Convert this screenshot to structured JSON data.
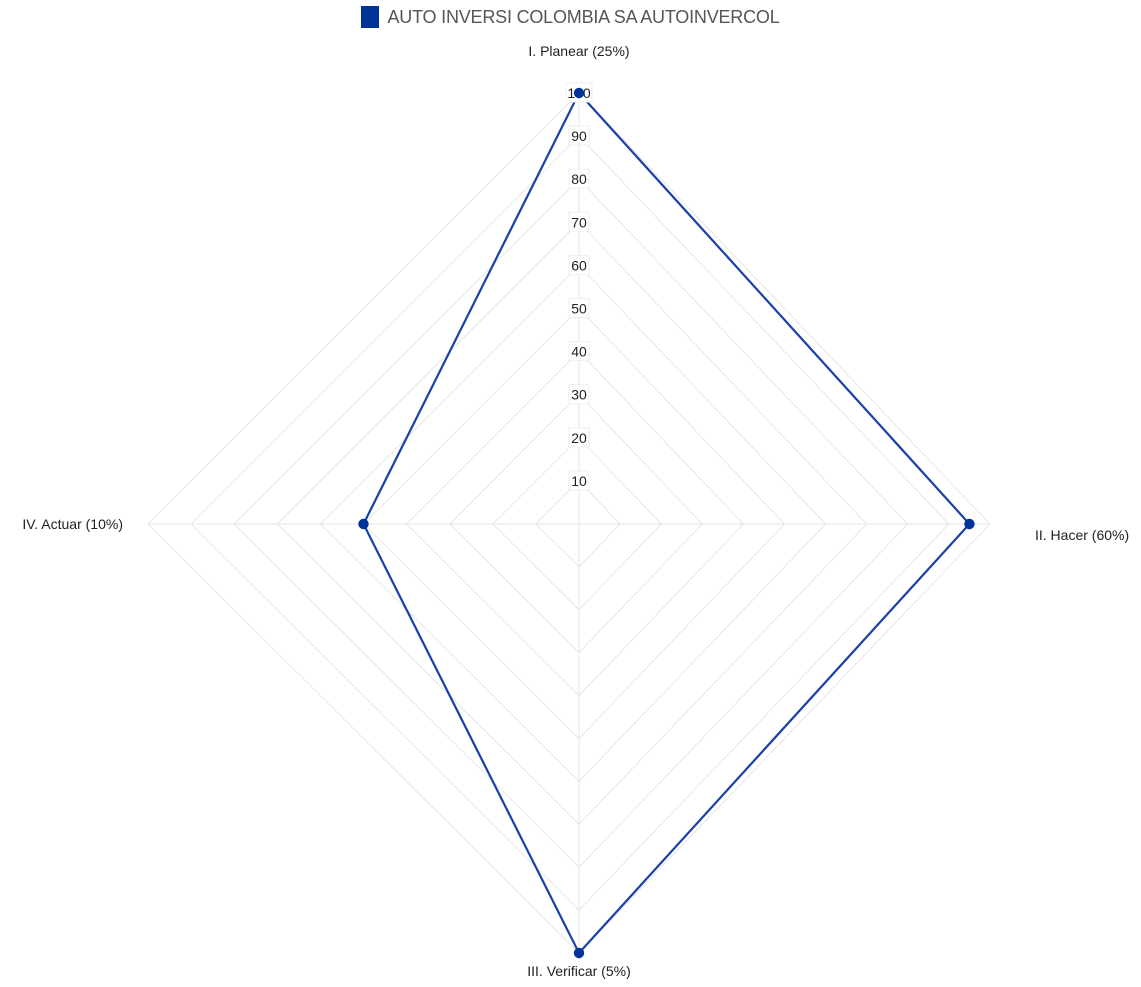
{
  "chart_data": {
    "type": "radar",
    "legend_position": "top-center",
    "grid": true,
    "axes": [
      "I. Planear (25%)",
      "II. Hacer (60%)",
      "III. Verificar (5%)",
      "IV. Actuar (10%)"
    ],
    "rlim": [
      0,
      100
    ],
    "r_ticks": [
      10,
      20,
      30,
      40,
      50,
      60,
      70,
      80,
      90,
      100
    ],
    "series": [
      {
        "name": "AUTO INVERSI COLOMBIA SA AUTOINVERCOL",
        "color": "#003399",
        "values": [
          100,
          95,
          100,
          50
        ]
      }
    ]
  },
  "colors": {
    "series": "#1a3faa",
    "grid": "#e6e6e6",
    "tick_text": "#222222",
    "label_text": "#222222"
  }
}
